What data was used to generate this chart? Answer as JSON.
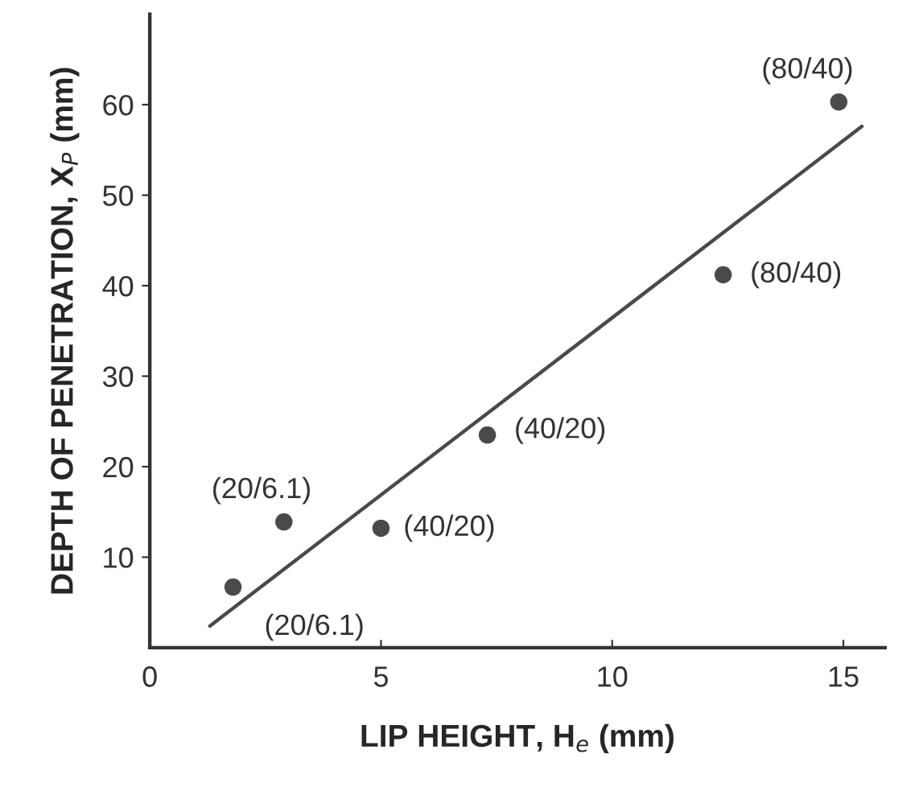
{
  "chart_data": {
    "type": "scatter",
    "xlabel": "LIP HEIGHT, H$_{e}$ (mm)",
    "ylabel": "DEPTH OF PENETRATION, X$_{P}$ (mm)",
    "xlim": [
      0,
      15.9
    ],
    "ylim": [
      0,
      70
    ],
    "xticks": [
      0,
      5,
      10,
      15
    ],
    "yticks": [
      10,
      20,
      30,
      40,
      50,
      60
    ],
    "grid": false,
    "series": [
      {
        "marker": "circle",
        "color": "#4a4a4a",
        "x": [
          1.8,
          2.9,
          5.0,
          7.3,
          12.4,
          14.9
        ],
        "values": [
          6.7,
          13.9,
          13.2,
          23.5,
          41.2,
          60.3
        ]
      },
      {
        "type": "line",
        "color": "#4a4a4a",
        "x": [
          1.3,
          15.4
        ],
        "values": [
          2.4,
          57.6
        ]
      }
    ],
    "annotations": [
      {
        "text": "(20/6.1)",
        "x": 1.8,
        "y": 6.7
      },
      {
        "text": "(20/6.1)",
        "x": 2.9,
        "y": 13.9
      },
      {
        "text": "(40/20)",
        "x": 5.0,
        "y": 13.2
      },
      {
        "text": "(40/20)",
        "x": 7.3,
        "y": 23.5
      },
      {
        "text": "(80/40)",
        "x": 12.4,
        "y": 41.2
      },
      {
        "text": "(80/40)",
        "x": 14.9,
        "y": 60.3
      }
    ]
  }
}
